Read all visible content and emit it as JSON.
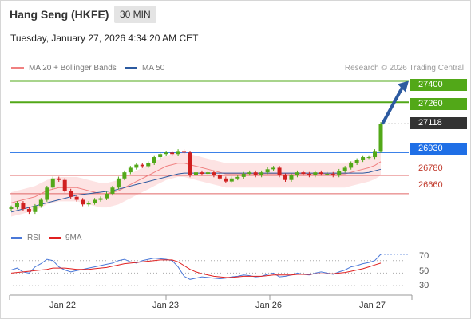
{
  "header": {
    "title": "Hang Seng (HKFE)",
    "timeframe": "30 MIN",
    "datetime": "Tuesday, January 27, 2026 4:34:20 AM CET"
  },
  "legend": {
    "items": [
      {
        "label": "MA 20 + Bollinger Bands",
        "color": "#f08080"
      },
      {
        "label": "MA 50",
        "color": "#2c5aa0"
      }
    ],
    "copyright": "Research © 2026 Trading Central"
  },
  "price_levels": [
    {
      "label": "27400",
      "value": 27400,
      "color": "#52a818",
      "style": "green"
    },
    {
      "label": "27260",
      "value": 27260,
      "color": "#52a818",
      "style": "green"
    },
    {
      "label": "27118",
      "value": 27118,
      "color": "#333333",
      "style": "current"
    },
    {
      "label": "26930",
      "value": 26930,
      "color": "#1f6fe6",
      "style": "pivot"
    },
    {
      "label": "26780",
      "value": 26780,
      "color": "#e06666",
      "style": "red"
    },
    {
      "label": "26660",
      "value": 26660,
      "color": "#e06666",
      "style": "red"
    }
  ],
  "rsi": {
    "legend": [
      {
        "label": "RSI",
        "color": "#4a78d8"
      },
      {
        "label": "9MA",
        "color": "#e02020"
      }
    ],
    "levels": [
      "70",
      "50",
      "30"
    ]
  },
  "x_axis": {
    "labels": [
      "Jan 22",
      "Jan 23",
      "Jan 26",
      "Jan 27"
    ]
  },
  "colors": {
    "up": "#52a818",
    "down": "#d02020",
    "band_fill": "#fde3e3",
    "ma20": "#f08080",
    "ma50": "#2c5aa0",
    "arrow": "#2c5aa0"
  },
  "chart_data": {
    "type": "candlestick",
    "ylim": [
      26450,
      27450
    ],
    "close": [
      26570,
      26600,
      26560,
      26540,
      26580,
      26620,
      26700,
      26760,
      26750,
      26680,
      26640,
      26620,
      26590,
      26600,
      26620,
      26630,
      26660,
      26700,
      26760,
      26800,
      26830,
      26850,
      26840,
      26860,
      26900,
      26920,
      26930,
      26920,
      26940,
      26930,
      26780,
      26800,
      26790,
      26800,
      26780,
      26760,
      26740,
      26760,
      26770,
      26790,
      26800,
      26780,
      26800,
      26820,
      26830,
      26780,
      26750,
      26780,
      26800,
      26790,
      26780,
      26800,
      26790,
      26790,
      26780,
      26810,
      26830,
      26860,
      26880,
      26900,
      26900,
      26940,
      27118
    ],
    "ma20": [
      26600,
      26610,
      26620,
      26630,
      26640,
      26660,
      26680,
      26690,
      26700,
      26700,
      26700,
      26700,
      26690,
      26680,
      26670,
      26660,
      26660,
      26670,
      26680,
      26700,
      26720,
      26740,
      26760,
      26780,
      26800,
      26820,
      26840,
      26850,
      26860,
      26860,
      26850,
      26840,
      26830,
      26820,
      26810,
      26800,
      26790,
      26790,
      26790,
      26790,
      26790,
      26790,
      26790,
      26790,
      26790,
      26790,
      26790,
      26790,
      26790,
      26790,
      26790,
      26790,
      26790,
      26790,
      26790,
      26790,
      26790,
      26800,
      26810,
      26820,
      26830,
      26845,
      26870
    ],
    "ma50": [
      26540,
      26550,
      26560,
      26570,
      26580,
      26590,
      26600,
      26610,
      26620,
      26630,
      26640,
      26650,
      26655,
      26660,
      26665,
      26670,
      26675,
      26680,
      26690,
      26700,
      26710,
      26720,
      26730,
      26740,
      26750,
      26760,
      26770,
      26780,
      26790,
      26795,
      26795,
      26795,
      26795,
      26795,
      26795,
      26795,
      26795,
      26795,
      26795,
      26795,
      26795,
      26795,
      26795,
      26795,
      26795,
      26795,
      26795,
      26795,
      26795,
      26795,
      26795,
      26795,
      26795,
      26795,
      26795,
      26795,
      26795,
      26795,
      26795,
      26795,
      26800,
      26810,
      26820
    ],
    "rsi": [
      55,
      58,
      52,
      50,
      60,
      65,
      72,
      70,
      60,
      55,
      52,
      54,
      56,
      58,
      60,
      62,
      64,
      66,
      70,
      72,
      68,
      66,
      70,
      72,
      74,
      73,
      72,
      70,
      60,
      45,
      40,
      42,
      44,
      43,
      42,
      41,
      42,
      44,
      45,
      47,
      46,
      44,
      45,
      48,
      50,
      44,
      45,
      47,
      50,
      48,
      47,
      50,
      52,
      50,
      48,
      52,
      55,
      60,
      62,
      65,
      67,
      70,
      80
    ],
    "rsi_ma": [
      50,
      51,
      52,
      53,
      54,
      55,
      56,
      58,
      58,
      58,
      57,
      56,
      56,
      56,
      57,
      58,
      59,
      61,
      63,
      65,
      66,
      67,
      68,
      69,
      70,
      71,
      71,
      71,
      68,
      62,
      56,
      52,
      49,
      47,
      45,
      44,
      43,
      43,
      44,
      45,
      45,
      45,
      45,
      46,
      47,
      47,
      47,
      47,
      48,
      48,
      48,
      49,
      49,
      49,
      49,
      50,
      51,
      53,
      55,
      57,
      60,
      63,
      66
    ]
  }
}
